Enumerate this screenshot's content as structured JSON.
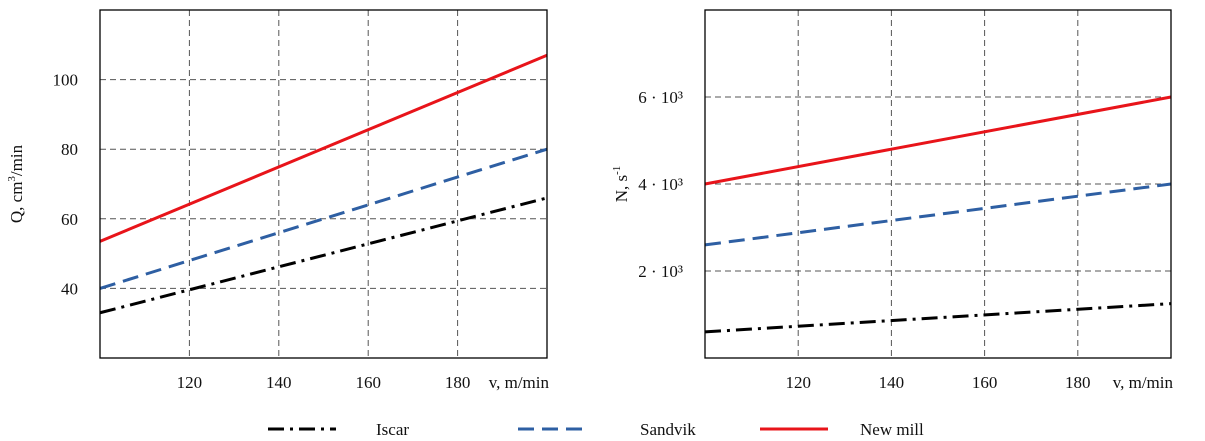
{
  "chart_data": [
    {
      "type": "line",
      "xlabel": "v, m/min",
      "ylabel": "Q, cm³/min",
      "ylabel_base": "Q, cm",
      "ylabel_sup": "3",
      "ylabel_tail": "/min",
      "xlim": [
        100,
        200
      ],
      "ylim": [
        20,
        120
      ],
      "xticks": [
        120,
        140,
        160,
        180
      ],
      "yticks": [
        40,
        60,
        80,
        100
      ],
      "ytick_labels": [
        "40",
        "60",
        "80",
        "100"
      ],
      "grid": true,
      "series": [
        {
          "name": "Iscar",
          "x": [
            100,
            200
          ],
          "y": [
            33,
            66
          ]
        },
        {
          "name": "Sandvik",
          "x": [
            100,
            200
          ],
          "y": [
            40,
            80
          ]
        },
        {
          "name": "New mill",
          "x": [
            100,
            200
          ],
          "y": [
            53.5,
            107
          ]
        }
      ]
    },
    {
      "type": "line",
      "xlabel": "v, m/min",
      "ylabel": "N, s⁻¹",
      "ylabel_base": "N, s",
      "ylabel_sup": "-1",
      "xlim": [
        100,
        200
      ],
      "ylim": [
        0,
        8000
      ],
      "xticks": [
        120,
        140,
        160,
        180
      ],
      "yticks": [
        2000,
        4000,
        6000
      ],
      "ytick_labels": [
        "2 · 10³",
        "4 · 10³",
        "6 · 10³"
      ],
      "grid": true,
      "series": [
        {
          "name": "Iscar",
          "x": [
            100,
            200
          ],
          "y": [
            600,
            1250
          ]
        },
        {
          "name": "Sandvik",
          "x": [
            100,
            200
          ],
          "y": [
            2600,
            4000
          ]
        },
        {
          "name": "New mill",
          "x": [
            100,
            200
          ],
          "y": [
            4000,
            6000
          ]
        }
      ]
    }
  ],
  "legend": {
    "placement": "bottom",
    "items": [
      {
        "name": "Iscar",
        "color": "#000000",
        "dash": "dash-dot"
      },
      {
        "name": "Sandvik",
        "color": "#2e5fa3",
        "dash": "dashed"
      },
      {
        "name": "New mill",
        "color": "#e8141a",
        "dash": "solid"
      }
    ]
  },
  "colors": {
    "Iscar": "#000000",
    "Sandvik": "#2e5fa3",
    "New mill": "#e8141a"
  }
}
